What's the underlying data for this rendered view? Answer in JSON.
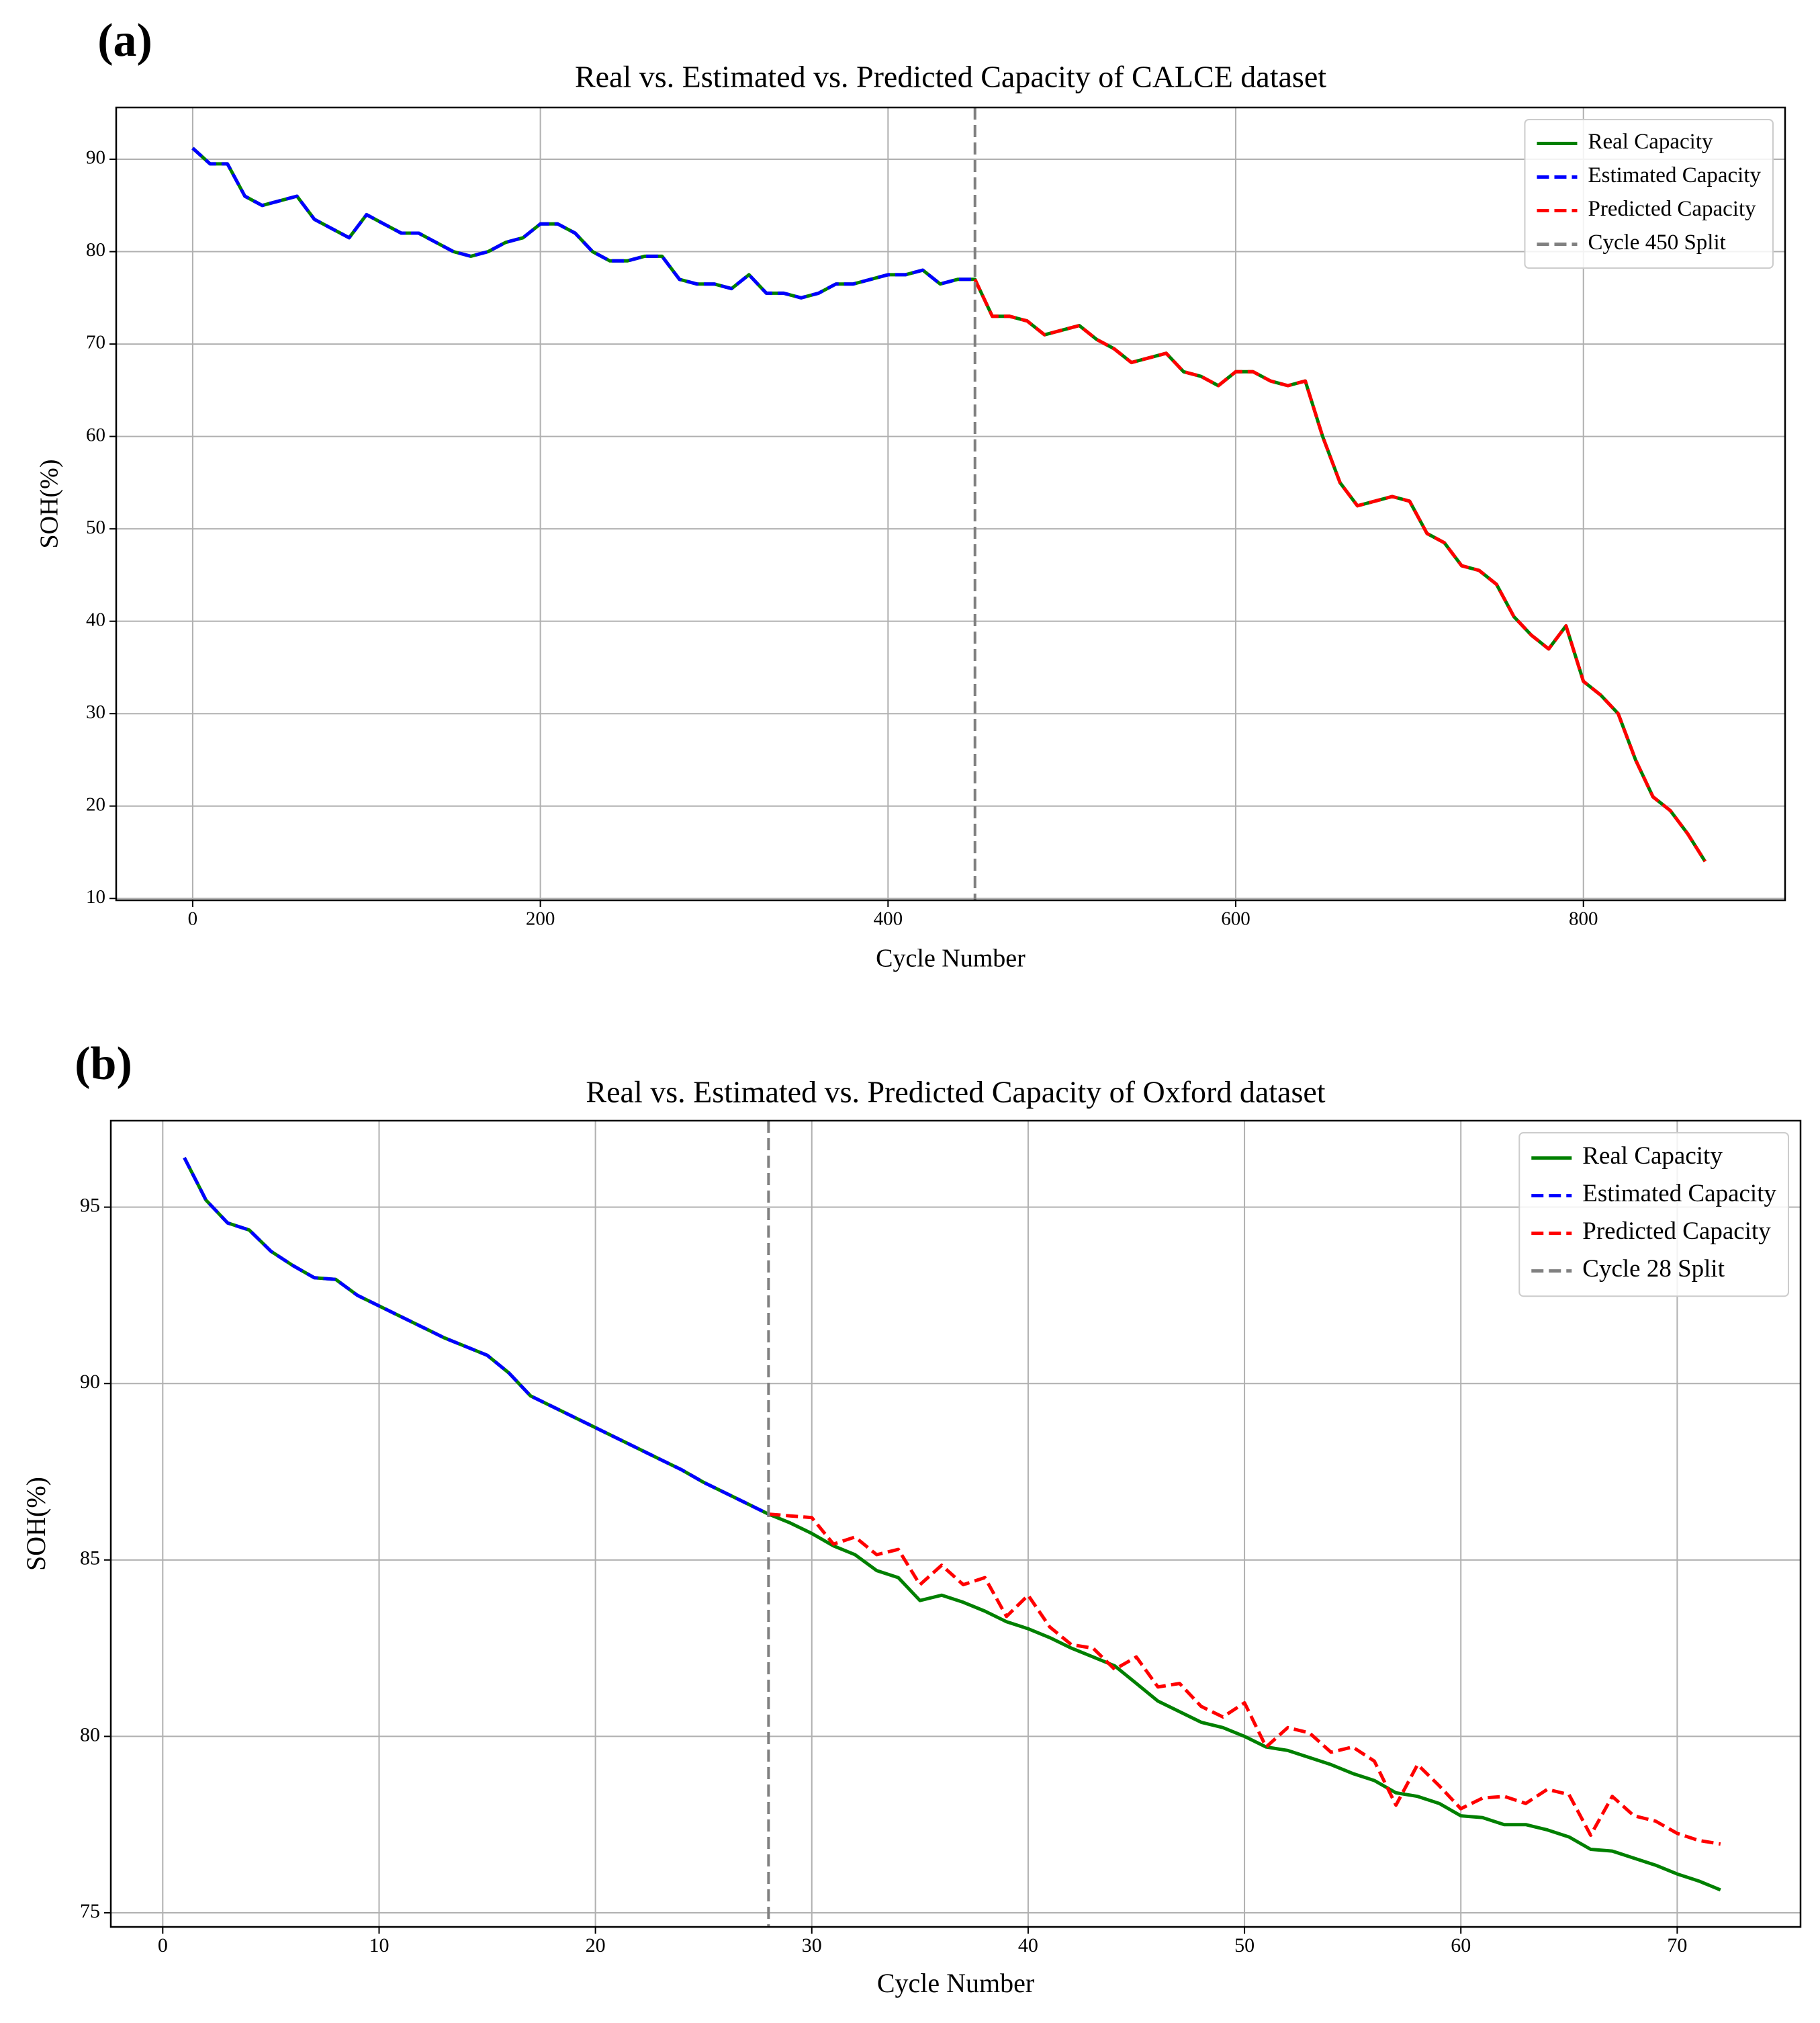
{
  "chart_data": [
    {
      "type": "line",
      "panel_label": "(a)",
      "title": "Real vs. Estimated vs. Predicted Capacity of CALCE dataset",
      "x_label": "Cycle Number",
      "y_label": "SOH(%)",
      "xlim": [
        -44,
        916
      ],
      "ylim": [
        9.8,
        95.6
      ],
      "xticks": [
        0,
        200,
        400,
        600,
        800
      ],
      "yticks": [
        10,
        20,
        30,
        40,
        50,
        60,
        70,
        80,
        90
      ],
      "grid": true,
      "legend": "upper right",
      "series": [
        {
          "name": "Real Capacity",
          "color": "#008000",
          "linestyle": "solid",
          "x": [
            0,
            10,
            20,
            30,
            40,
            50,
            60,
            70,
            80,
            90,
            100,
            110,
            120,
            130,
            140,
            150,
            160,
            170,
            180,
            190,
            200,
            210,
            220,
            230,
            240,
            250,
            260,
            270,
            280,
            290,
            300,
            310,
            320,
            330,
            340,
            350,
            360,
            370,
            380,
            390,
            400,
            410,
            420,
            430,
            440,
            450,
            460,
            470,
            480,
            490,
            500,
            510,
            520,
            530,
            540,
            550,
            560,
            570,
            580,
            590,
            600,
            610,
            620,
            630,
            640,
            650,
            660,
            670,
            680,
            690,
            700,
            710,
            720,
            730,
            740,
            750,
            760,
            770,
            780,
            790,
            800,
            810,
            820,
            830,
            840,
            850,
            860,
            870
          ],
          "values": [
            91.2,
            89.5,
            89.5,
            86,
            85,
            85.5,
            86,
            83.5,
            82.5,
            81.5,
            84,
            83,
            82,
            82,
            81,
            80,
            79.5,
            80,
            81,
            81.5,
            83,
            83,
            82,
            80,
            79,
            79,
            79.5,
            79.5,
            77,
            76.5,
            76.5,
            76,
            77.5,
            75.5,
            75.5,
            75,
            75.5,
            76.5,
            76.5,
            77,
            77.5,
            77.5,
            78,
            76.5,
            77,
            77,
            73,
            73,
            72.5,
            71,
            71.5,
            72,
            70.5,
            69.5,
            68,
            68.5,
            69,
            67,
            66.5,
            65.5,
            67,
            67,
            66,
            65.5,
            66,
            60,
            55,
            52.5,
            53,
            53.5,
            53,
            49.5,
            48.5,
            46,
            45.5,
            44,
            40.5,
            38.5,
            37,
            39.5,
            33.5,
            32,
            30,
            25,
            21,
            19.5,
            17,
            14
          ]
        },
        {
          "name": "Estimated Capacity",
          "color": "#0000ff",
          "linestyle": "dashed",
          "x": [
            0,
            10,
            20,
            30,
            40,
            50,
            60,
            70,
            80,
            90,
            100,
            110,
            120,
            130,
            140,
            150,
            160,
            170,
            180,
            190,
            200,
            210,
            220,
            230,
            240,
            250,
            260,
            270,
            280,
            290,
            300,
            310,
            320,
            330,
            340,
            350,
            360,
            370,
            380,
            390,
            400,
            410,
            420,
            430,
            440,
            450
          ],
          "values": [
            91.2,
            89.5,
            89.5,
            86,
            85,
            85.5,
            86,
            83.5,
            82.5,
            81.5,
            84,
            83,
            82,
            82,
            81,
            80,
            79.5,
            80,
            81,
            81.5,
            83,
            83,
            82,
            80,
            79,
            79,
            79.5,
            79.5,
            77,
            76.5,
            76.5,
            76,
            77.5,
            75.5,
            75.5,
            75,
            75.5,
            76.5,
            76.5,
            77,
            77.5,
            77.5,
            78,
            76.5,
            77,
            77
          ]
        },
        {
          "name": "Predicted Capacity",
          "color": "#ff0000",
          "linestyle": "dashed",
          "x": [
            450,
            460,
            470,
            480,
            490,
            500,
            510,
            520,
            530,
            540,
            550,
            560,
            570,
            580,
            590,
            600,
            610,
            620,
            630,
            640,
            650,
            660,
            670,
            680,
            690,
            700,
            710,
            720,
            730,
            740,
            750,
            760,
            770,
            780,
            790,
            800,
            810,
            820,
            830,
            840,
            850,
            860,
            870
          ],
          "values": [
            77,
            73,
            73,
            72.5,
            71,
            71.5,
            72,
            70.5,
            69.5,
            68,
            68.5,
            69,
            67,
            66.5,
            65.5,
            67,
            67,
            66,
            65.5,
            66,
            60,
            55,
            52.5,
            53,
            53.5,
            53,
            49.5,
            48.5,
            46,
            45.5,
            44,
            40.5,
            38.5,
            37,
            39.5,
            33.5,
            32,
            30,
            25,
            21,
            19.5,
            17,
            14
          ]
        }
      ],
      "vline": {
        "x": 450,
        "label": "Cycle 450 Split",
        "color": "#808080",
        "linestyle": "dashed"
      }
    },
    {
      "type": "line",
      "panel_label": "(b)",
      "title": "Real vs. Estimated vs. Predicted Capacity of Oxford dataset",
      "x_label": "Cycle Number",
      "y_label": "SOH(%)",
      "xlim": [
        -2.4,
        75.7
      ],
      "ylim": [
        74.6,
        97.45
      ],
      "xticks": [
        0,
        10,
        20,
        30,
        40,
        50,
        60,
        70
      ],
      "yticks": [
        75,
        80,
        85,
        90,
        95
      ],
      "grid": true,
      "legend": "upper right",
      "series": [
        {
          "name": "Real Capacity",
          "color": "#008000",
          "linestyle": "solid",
          "x": [
            1,
            2,
            3,
            4,
            5,
            6,
            7,
            8,
            9,
            10,
            11,
            12,
            13,
            14,
            15,
            16,
            17,
            18,
            19,
            20,
            21,
            22,
            23,
            24,
            25,
            26,
            27,
            28,
            29,
            30,
            31,
            32,
            33,
            34,
            35,
            36,
            37,
            38,
            39,
            40,
            41,
            42,
            43,
            44,
            45,
            46,
            47,
            48,
            49,
            50,
            51,
            52,
            53,
            54,
            55,
            56,
            57,
            58,
            59,
            60,
            61,
            62,
            63,
            64,
            65,
            66,
            67,
            68,
            69,
            70,
            71,
            72
          ],
          "values": [
            96.4,
            95.2,
            94.55,
            94.35,
            93.75,
            93.35,
            93.0,
            92.95,
            92.5,
            92.2,
            91.9,
            91.6,
            91.3,
            91.05,
            90.8,
            90.3,
            89.65,
            89.35,
            89.05,
            88.75,
            88.45,
            88.15,
            87.85,
            87.55,
            87.2,
            86.9,
            86.6,
            86.3,
            86.05,
            85.75,
            85.4,
            85.15,
            84.7,
            84.5,
            83.85,
            84.0,
            83.8,
            83.55,
            83.25,
            83.05,
            82.8,
            82.5,
            82.25,
            82.0,
            81.5,
            81.0,
            80.7,
            80.4,
            80.25,
            80.0,
            79.7,
            79.6,
            79.4,
            79.2,
            78.95,
            78.75,
            78.4,
            78.3,
            78.1,
            77.75,
            77.7,
            77.5,
            77.5,
            77.35,
            77.15,
            76.8,
            76.75,
            76.55,
            76.35,
            76.1,
            75.9,
            75.65
          ]
        },
        {
          "name": "Estimated Capacity",
          "color": "#0000ff",
          "linestyle": "dashed",
          "x": [
            1,
            2,
            3,
            4,
            5,
            6,
            7,
            8,
            9,
            10,
            11,
            12,
            13,
            14,
            15,
            16,
            17,
            18,
            19,
            20,
            21,
            22,
            23,
            24,
            25,
            26,
            27,
            28
          ],
          "values": [
            96.4,
            95.2,
            94.55,
            94.35,
            93.75,
            93.35,
            93.0,
            92.95,
            92.5,
            92.2,
            91.9,
            91.6,
            91.3,
            91.05,
            90.8,
            90.3,
            89.65,
            89.35,
            89.05,
            88.75,
            88.45,
            88.15,
            87.85,
            87.55,
            87.2,
            86.9,
            86.6,
            86.3
          ]
        },
        {
          "name": "Predicted Capacity",
          "color": "#ff0000",
          "linestyle": "dashed",
          "x": [
            28,
            29,
            30,
            31,
            32,
            33,
            34,
            35,
            36,
            37,
            38,
            39,
            40,
            41,
            42,
            43,
            44,
            45,
            46,
            47,
            48,
            49,
            50,
            51,
            52,
            53,
            54,
            55,
            56,
            57,
            58,
            59,
            60,
            61,
            62,
            63,
            64,
            65,
            66,
            67,
            68,
            69,
            70,
            71,
            72
          ],
          "values": [
            86.3,
            86.25,
            86.2,
            85.45,
            85.65,
            85.15,
            85.3,
            84.3,
            84.85,
            84.3,
            84.5,
            83.4,
            84.0,
            83.1,
            82.6,
            82.5,
            81.9,
            82.25,
            81.4,
            81.5,
            80.85,
            80.55,
            80.95,
            79.7,
            80.25,
            80.1,
            79.55,
            79.7,
            79.3,
            78.05,
            79.2,
            78.6,
            77.95,
            78.25,
            78.3,
            78.1,
            78.5,
            78.35,
            77.2,
            78.3,
            77.75,
            77.6,
            77.25,
            77.05,
            76.95
          ]
        }
      ],
      "vline": {
        "x": 28,
        "label": "Cycle 28 Split",
        "color": "#808080",
        "linestyle": "dashed"
      }
    }
  ]
}
